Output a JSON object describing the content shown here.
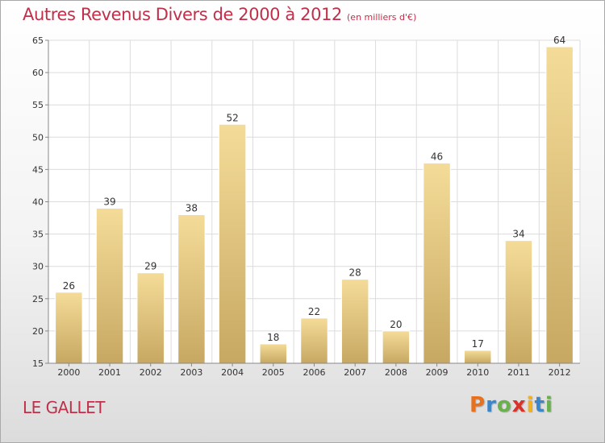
{
  "header": {
    "title": "Autres Revenus Divers de 2000 à 2012",
    "subtitle": "(en milliers d'€)"
  },
  "location": "LE GALLET",
  "logo": {
    "text": "Proxiti",
    "letters": [
      {
        "char": "P",
        "color": "#e8711e"
      },
      {
        "char": "r",
        "color": "#3a86c8"
      },
      {
        "char": "o",
        "color": "#6ab04c"
      },
      {
        "char": "x",
        "color": "#d8322a"
      },
      {
        "char": "i",
        "color": "#f2b024"
      },
      {
        "char": "t",
        "color": "#3a86c8"
      },
      {
        "char": "i",
        "color": "#6ab04c"
      }
    ]
  },
  "chart_data": {
    "type": "bar",
    "title": "Autres Revenus Divers de 2000 à 2012",
    "subtitle": "(en milliers d'€)",
    "categories": [
      "2000",
      "2001",
      "2002",
      "2003",
      "2004",
      "2005",
      "2006",
      "2007",
      "2008",
      "2009",
      "2010",
      "2011",
      "2012"
    ],
    "values": [
      26,
      39,
      29,
      38,
      52,
      18,
      22,
      28,
      20,
      46,
      17,
      34,
      64
    ],
    "ylim": [
      15,
      65
    ],
    "yticks": [
      15,
      20,
      25,
      30,
      35,
      40,
      45,
      50,
      55,
      60,
      65
    ],
    "grid": true,
    "bar_color_top": "#f4dc98",
    "bar_color_bottom": "#c7a862",
    "legend": "none"
  }
}
